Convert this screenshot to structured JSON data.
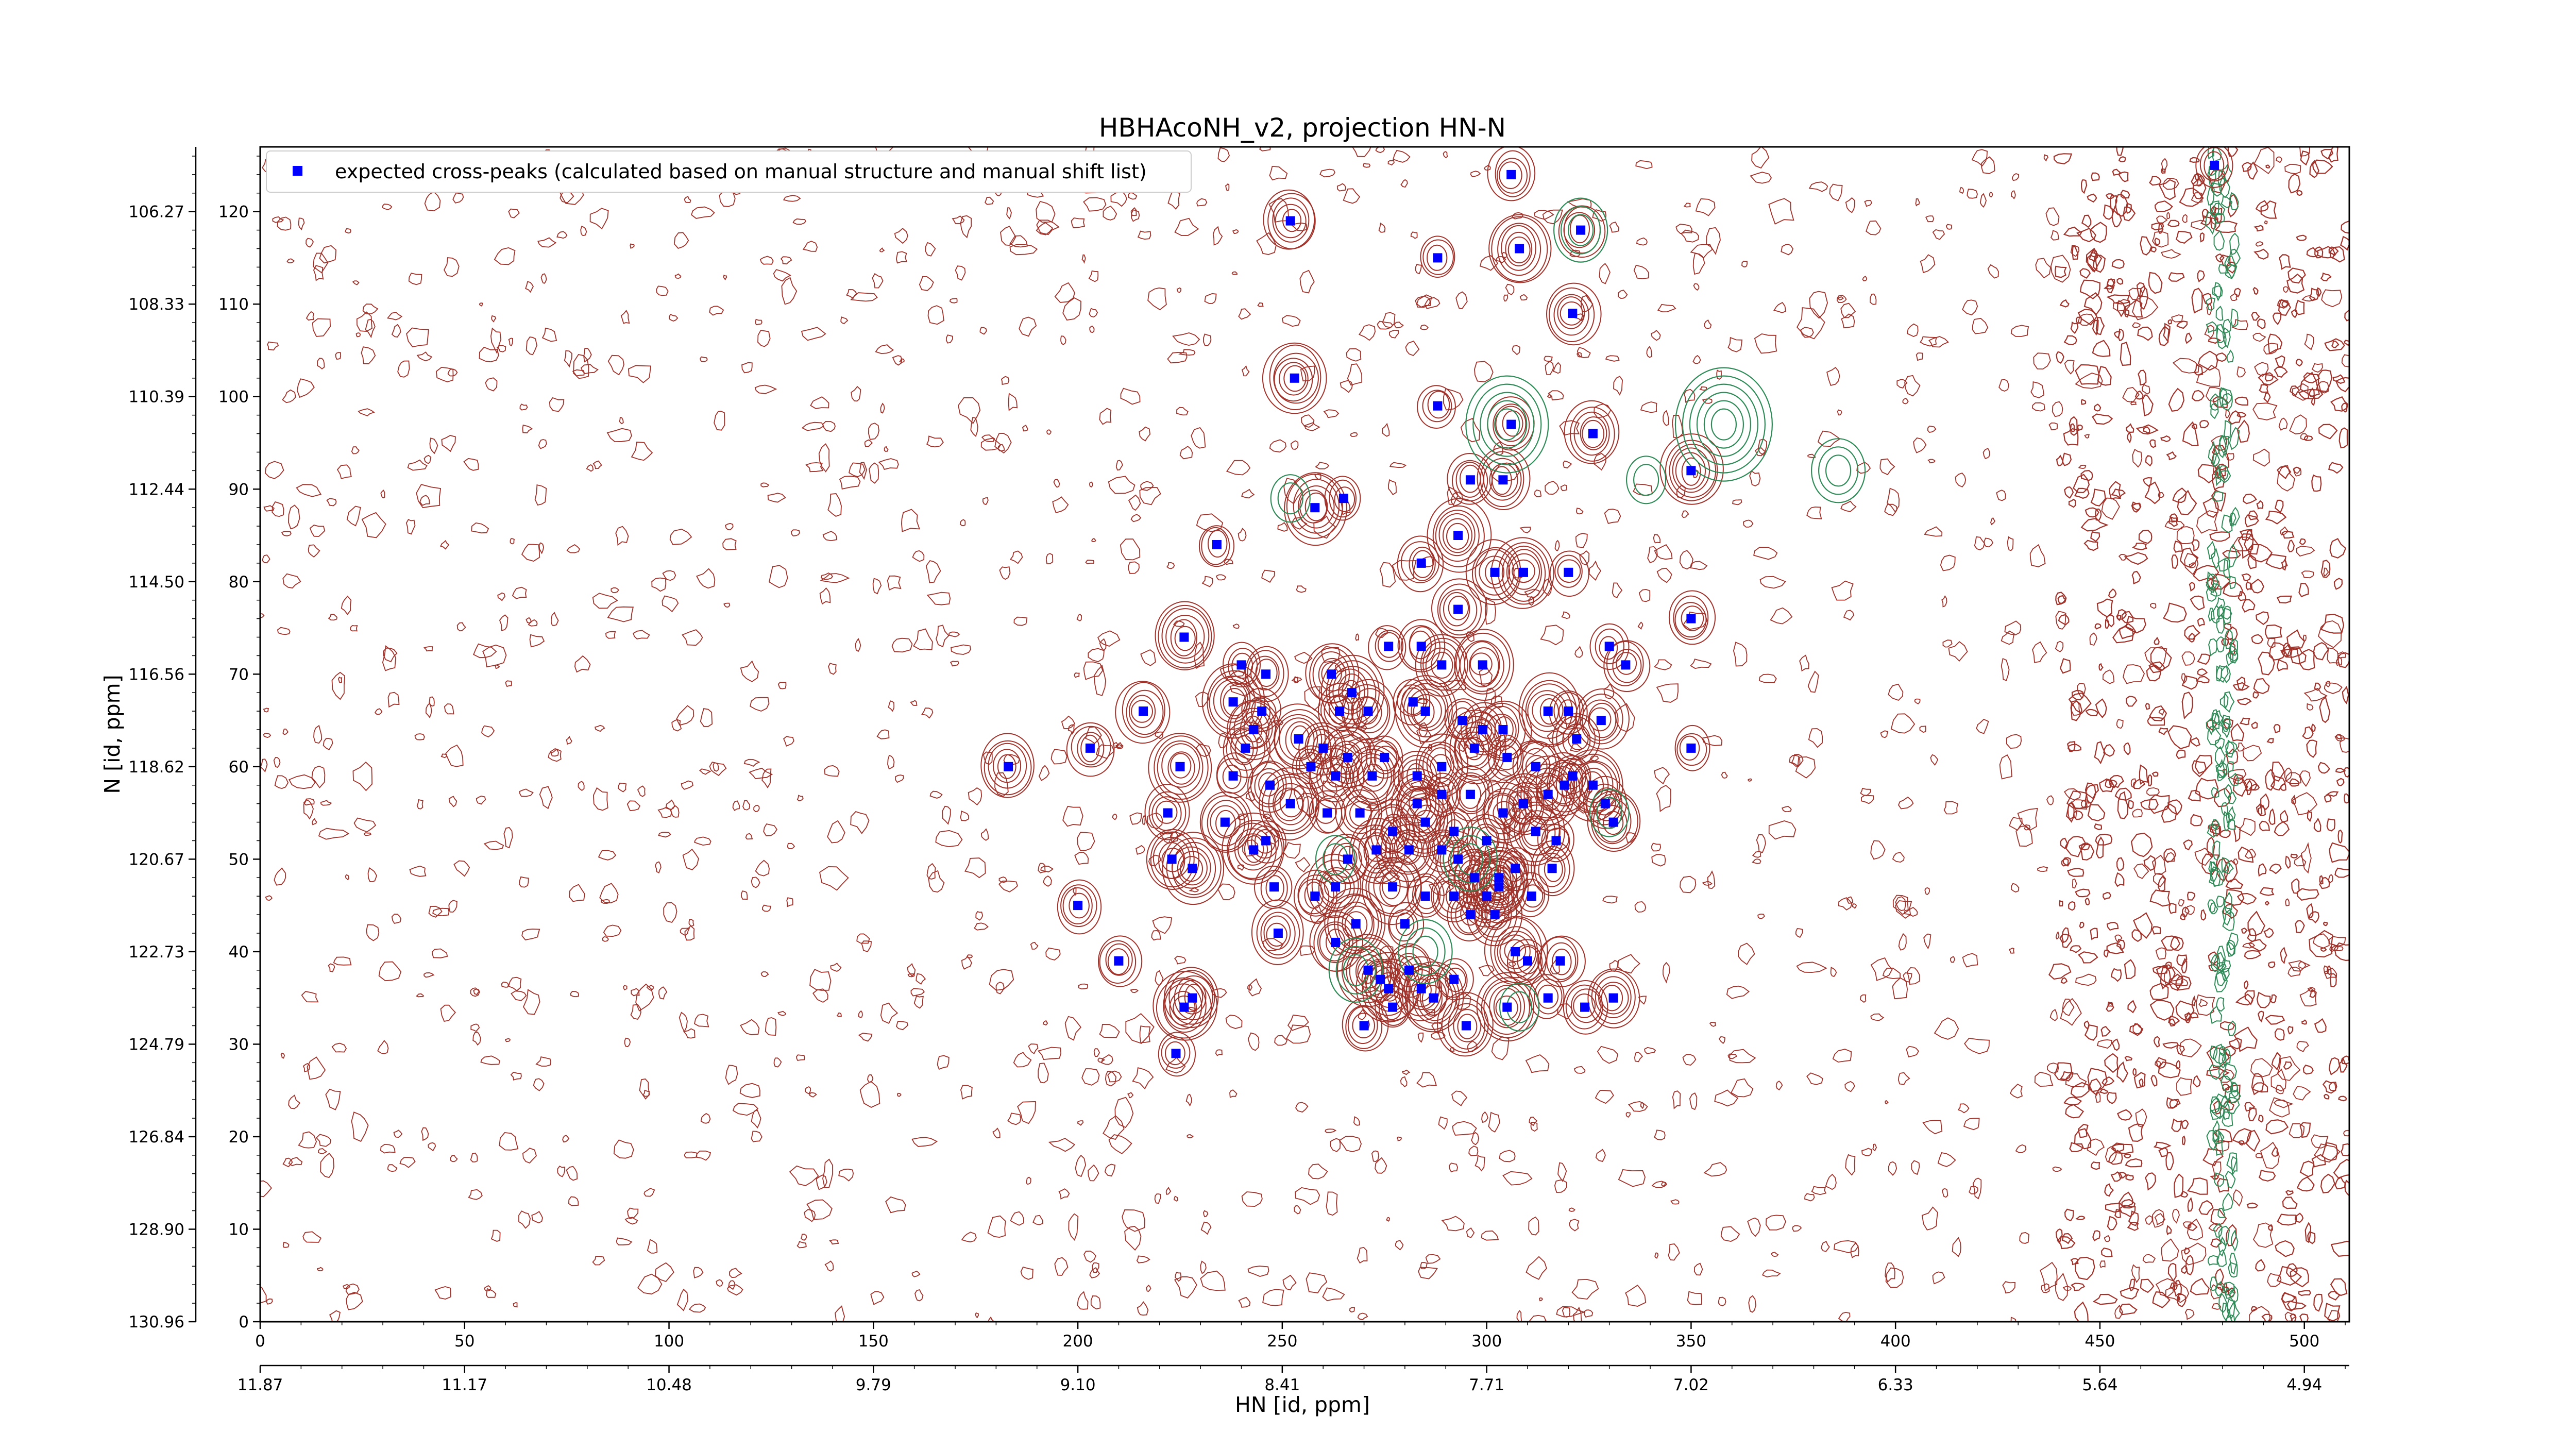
{
  "chart_data": {
    "type": "scatter",
    "title": "HBHAcoNH_v2, projection HN-N",
    "xlabel": "HN [id, ppm]",
    "ylabel": "N [id, ppm]",
    "x_index_ticks": [
      0,
      50,
      100,
      150,
      200,
      250,
      300,
      350,
      400,
      450,
      500
    ],
    "x_ppm_ticks": [
      "11.87",
      "11.17",
      "10.48",
      "9.79",
      "9.10",
      "8.41",
      "7.71",
      "7.02",
      "6.33",
      "5.64",
      "4.94"
    ],
    "y_index_ticks": [
      0,
      10,
      20,
      30,
      40,
      50,
      60,
      70,
      80,
      90,
      100,
      110,
      120
    ],
    "y_ppm_ticks": [
      "130.96",
      "128.90",
      "126.84",
      "124.79",
      "122.73",
      "120.67",
      "118.62",
      "116.56",
      "114.50",
      "112.44",
      "110.39",
      "108.33",
      "106.27"
    ],
    "xlim": [
      0,
      511
    ],
    "ylim": [
      0,
      127
    ],
    "legend_position": "top-left",
    "grid": false,
    "contour_colors": {
      "positive": "#a0322a",
      "negative": "#2e8b57"
    },
    "series": [
      {
        "name": "expected cross-peaks (calculated based on manual structure and manual shift list)",
        "color": "#0000ff",
        "marker": "square",
        "points": [
          [
            478,
            125
          ],
          [
            306,
            124
          ],
          [
            252,
            119
          ],
          [
            308,
            116
          ],
          [
            288,
            115
          ],
          [
            323,
            118
          ],
          [
            321,
            109
          ],
          [
            253,
            102
          ],
          [
            288,
            99
          ],
          [
            306,
            97
          ],
          [
            326,
            96
          ],
          [
            258,
            88
          ],
          [
            265,
            89
          ],
          [
            296,
            91
          ],
          [
            304,
            91
          ],
          [
            293,
            85
          ],
          [
            234,
            84
          ],
          [
            284,
            82
          ],
          [
            302,
            81
          ],
          [
            309,
            81
          ],
          [
            320,
            81
          ],
          [
            350,
            76
          ],
          [
            293,
            77
          ],
          [
            226,
            74
          ],
          [
            276,
            73
          ],
          [
            284,
            73
          ],
          [
            289,
            71
          ],
          [
            299,
            71
          ],
          [
            240,
            71
          ],
          [
            246,
            70
          ],
          [
            262,
            70
          ],
          [
            350,
            92
          ],
          [
            330,
            73
          ],
          [
            334,
            71
          ],
          [
            216,
            66
          ],
          [
            267,
            68
          ],
          [
            282,
            67
          ],
          [
            264,
            66
          ],
          [
            271,
            66
          ],
          [
            285,
            66
          ],
          [
            294,
            65
          ],
          [
            299,
            64
          ],
          [
            304,
            64
          ],
          [
            315,
            66
          ],
          [
            320,
            66
          ],
          [
            322,
            63
          ],
          [
            328,
            65
          ],
          [
            238,
            67
          ],
          [
            245,
            66
          ],
          [
            241,
            62
          ],
          [
            243,
            64
          ],
          [
            254,
            63
          ],
          [
            257,
            60
          ],
          [
            260,
            62
          ],
          [
            266,
            61
          ],
          [
            272,
            59
          ],
          [
            275,
            61
          ],
          [
            283,
            59
          ],
          [
            289,
            60
          ],
          [
            297,
            62
          ],
          [
            305,
            61
          ],
          [
            312,
            60
          ],
          [
            319,
            58
          ],
          [
            326,
            58
          ],
          [
            350,
            62
          ],
          [
            203,
            62
          ],
          [
            183,
            60
          ],
          [
            225,
            60
          ],
          [
            238,
            59
          ],
          [
            247,
            58
          ],
          [
            263,
            59
          ],
          [
            283,
            56
          ],
          [
            289,
            57
          ],
          [
            296,
            57
          ],
          [
            309,
            56
          ],
          [
            315,
            57
          ],
          [
            321,
            59
          ],
          [
            329,
            56
          ],
          [
            331,
            54
          ],
          [
            252,
            56
          ],
          [
            261,
            55
          ],
          [
            269,
            55
          ],
          [
            277,
            53
          ],
          [
            285,
            54
          ],
          [
            292,
            53
          ],
          [
            300,
            52
          ],
          [
            304,
            55
          ],
          [
            312,
            53
          ],
          [
            317,
            52
          ],
          [
            222,
            55
          ],
          [
            236,
            54
          ],
          [
            243,
            51
          ],
          [
            246,
            52
          ],
          [
            266,
            50
          ],
          [
            273,
            51
          ],
          [
            281,
            51
          ],
          [
            289,
            51
          ],
          [
            293,
            50
          ],
          [
            297,
            48
          ],
          [
            303,
            48
          ],
          [
            307,
            49
          ],
          [
            316,
            49
          ],
          [
            223,
            50
          ],
          [
            228,
            49
          ],
          [
            248,
            47
          ],
          [
            258,
            46
          ],
          [
            263,
            47
          ],
          [
            277,
            47
          ],
          [
            285,
            46
          ],
          [
            292,
            46
          ],
          [
            300,
            46
          ],
          [
            303,
            47
          ],
          [
            311,
            46
          ],
          [
            200,
            45
          ],
          [
            249,
            42
          ],
          [
            268,
            43
          ],
          [
            280,
            43
          ],
          [
            296,
            44
          ],
          [
            302,
            44
          ],
          [
            307,
            40
          ],
          [
            310,
            39
          ],
          [
            318,
            39
          ],
          [
            263,
            41
          ],
          [
            271,
            38
          ],
          [
            274,
            37
          ],
          [
            281,
            38
          ],
          [
            284,
            36
          ],
          [
            287,
            35
          ],
          [
            292,
            37
          ],
          [
            210,
            39
          ],
          [
            228,
            35
          ],
          [
            226,
            34
          ],
          [
            277,
            34
          ],
          [
            270,
            32
          ],
          [
            295,
            32
          ],
          [
            305,
            34
          ],
          [
            315,
            35
          ],
          [
            324,
            34
          ],
          [
            331,
            35
          ],
          [
            276,
            36
          ],
          [
            224,
            29
          ]
        ]
      }
    ]
  }
}
